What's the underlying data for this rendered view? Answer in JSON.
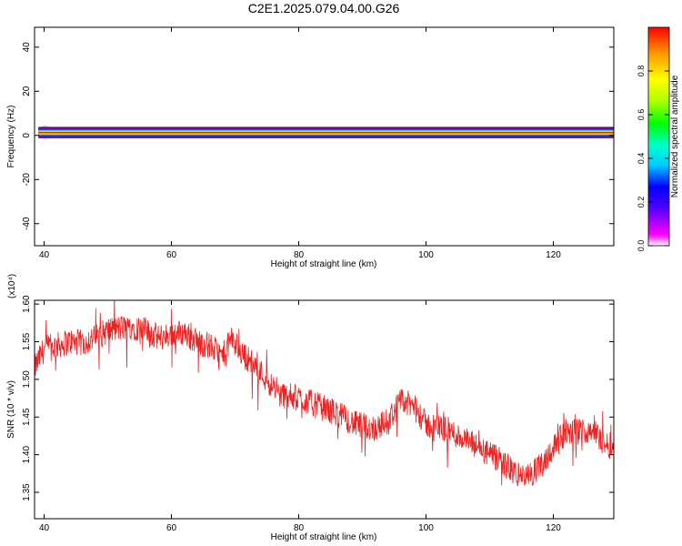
{
  "title": "C2E1.2025.079.04.00.G26",
  "chart_data": [
    {
      "type": "heatmap",
      "name": "spectrogram",
      "xlabel": "Height of straight line (km)",
      "ylabel": "Frequency (Hz)",
      "xlim": [
        38.5,
        129.5
      ],
      "ylim": [
        -50,
        49
      ],
      "xticks": [
        40,
        60,
        80,
        100,
        120
      ],
      "yticks": [
        -40,
        -20,
        0,
        20,
        40
      ],
      "band_center_hz": 1.3,
      "band_halfwidth_hz": 2.2,
      "colorbar": {
        "label": "Normalized spectral amplitude",
        "range": [
          0,
          1
        ],
        "ticks": [
          "0.0",
          "0.2",
          "0.4",
          "0.6",
          "0.8"
        ],
        "colors": [
          "#ffffff",
          "#ff00ff",
          "#5500ff",
          "#0000ff",
          "#00ccff",
          "#00ffcc",
          "#00ff00",
          "#aaff00",
          "#ffff00",
          "#ff9900",
          "#ff0000"
        ]
      }
    },
    {
      "type": "line",
      "name": "snr",
      "xlabel": "Height of straight line (km)",
      "ylabel": "SNR (10 * v/v)",
      "scale_label": "(x10⁴)",
      "xlim": [
        38.5,
        129.5
      ],
      "ylim": [
        1.315,
        1.605
      ],
      "xticks": [
        40,
        60,
        80,
        100,
        120
      ],
      "yticks": [
        "1.35",
        "1.40",
        "1.45",
        "1.50",
        "1.55",
        "1.60"
      ],
      "color": "#ee2222",
      "series": [
        {
          "x": [
            38.5,
            40,
            42,
            44,
            46,
            48,
            50,
            52,
            54,
            56,
            58,
            60,
            62,
            64,
            66,
            68,
            69.5,
            71,
            73,
            75,
            77,
            80,
            83,
            86,
            89,
            92,
            94,
            96,
            98,
            100,
            103,
            106,
            109,
            112,
            114,
            116,
            118,
            120,
            122,
            124,
            126,
            128,
            129.5
          ],
          "values": [
            1.515,
            1.54,
            1.545,
            1.55,
            1.548,
            1.555,
            1.565,
            1.568,
            1.57,
            1.565,
            1.555,
            1.56,
            1.562,
            1.55,
            1.545,
            1.53,
            1.555,
            1.535,
            1.52,
            1.5,
            1.48,
            1.475,
            1.465,
            1.455,
            1.44,
            1.435,
            1.445,
            1.47,
            1.465,
            1.44,
            1.435,
            1.42,
            1.405,
            1.39,
            1.375,
            1.37,
            1.385,
            1.41,
            1.43,
            1.43,
            1.435,
            1.415,
            1.41
          ],
          "noise": 0.018
        }
      ]
    }
  ]
}
